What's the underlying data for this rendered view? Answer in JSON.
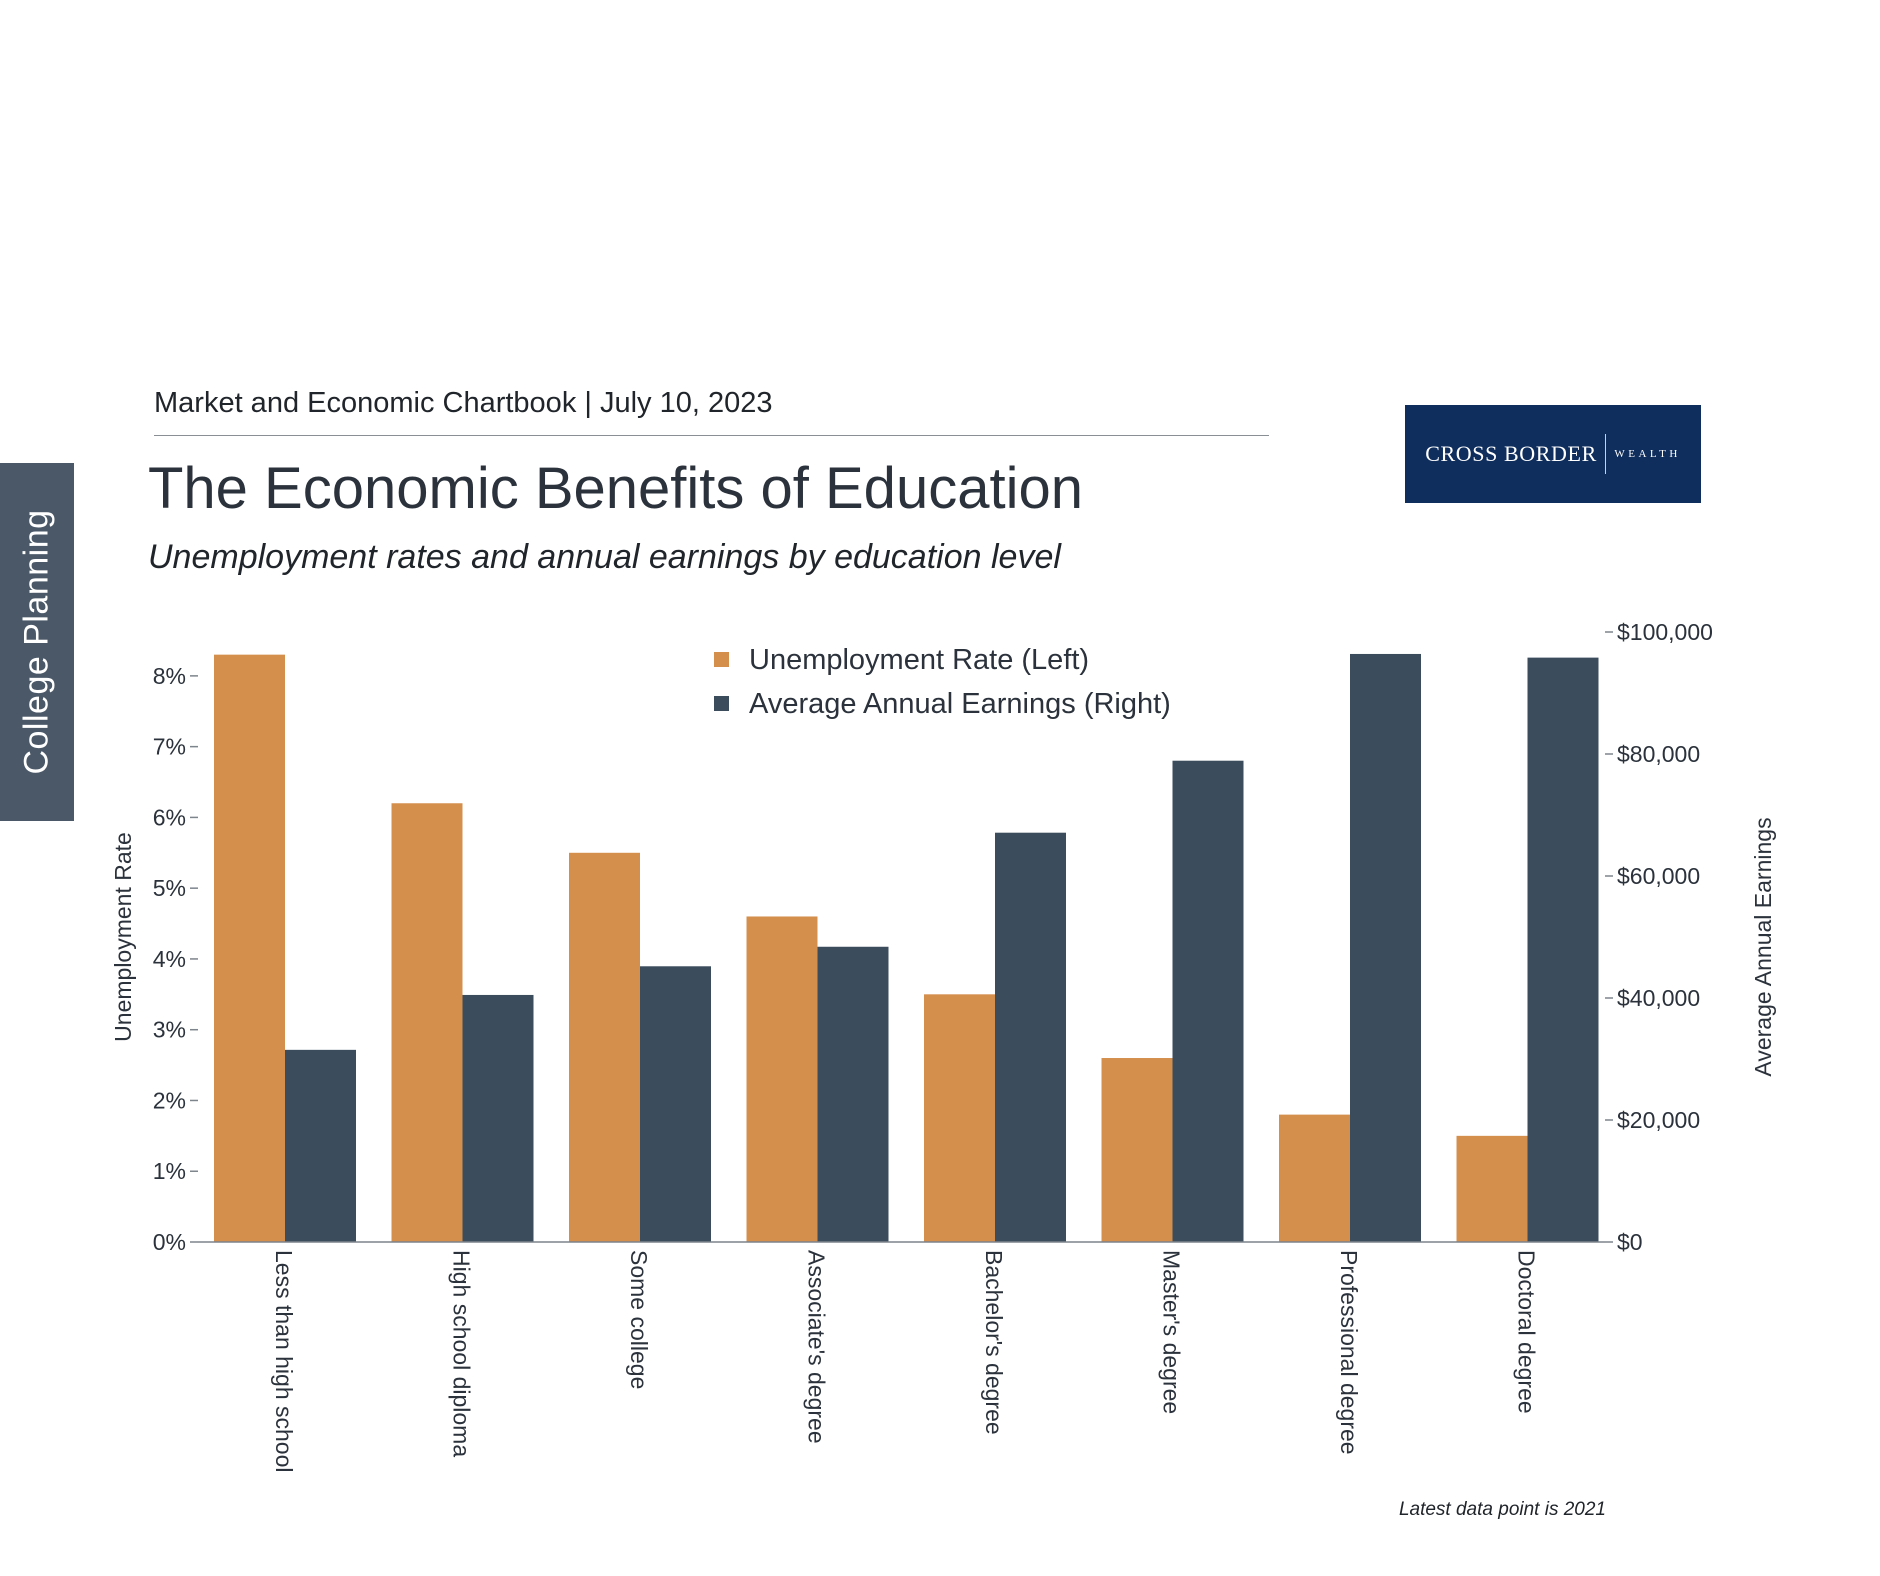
{
  "sidebar": {
    "tab_label": "College Planning"
  },
  "header": {
    "report_line": "Market and Economic Chartbook | July 10, 2023",
    "title": "The Economic Benefits of Education",
    "subtitle": "Unemployment rates and annual earnings by education level"
  },
  "logo": {
    "main_text": "CROSS BORDER",
    "sub_text": "WEALTH",
    "background_color": "#0f2e5d"
  },
  "footnote": "Latest data point is 2021",
  "colors": {
    "unemployment": "#d48f4d",
    "earnings": "#3b4d5d",
    "side_tab": "#4b5868"
  },
  "chart_data": {
    "type": "bar",
    "title": "The Economic Benefits of Education",
    "subtitle": "Unemployment rates and annual earnings by education level",
    "categories": [
      "Less than high school",
      "High school diploma",
      "Some college",
      "Associate's degree",
      "Bachelor's degree",
      "Master's degree",
      "Professional degree",
      "Doctoral degree"
    ],
    "series": [
      {
        "name": "Unemployment Rate (Left)",
        "axis": "left",
        "unit": "%",
        "color": "#d48f4d",
        "values": [
          8.3,
          6.2,
          5.5,
          4.6,
          3.5,
          2.6,
          1.8,
          1.5
        ]
      },
      {
        "name": "Average Annual Earnings (Right)",
        "axis": "right",
        "unit": "$",
        "color": "#3b4d5d",
        "values": [
          31500,
          40500,
          45200,
          48400,
          67100,
          78900,
          96400,
          95800
        ]
      }
    ],
    "y_left": {
      "label": "Unemployment Rate",
      "lim": [
        0,
        8.62
      ],
      "ticks": [
        0,
        1,
        2,
        3,
        4,
        5,
        6,
        7,
        8
      ],
      "tick_labels": [
        "0%",
        "1%",
        "2%",
        "3%",
        "4%",
        "5%",
        "6%",
        "7%",
        "8%"
      ]
    },
    "y_right": {
      "label": "Average Annual Earnings",
      "lim": [
        0,
        100000
      ],
      "ticks": [
        0,
        20000,
        40000,
        60000,
        80000,
        100000
      ],
      "tick_labels": [
        "$0",
        "$20,000",
        "$40,000",
        "$60,000",
        "$80,000",
        "$100,000"
      ]
    },
    "legend_position": "top-center",
    "grid": false
  }
}
